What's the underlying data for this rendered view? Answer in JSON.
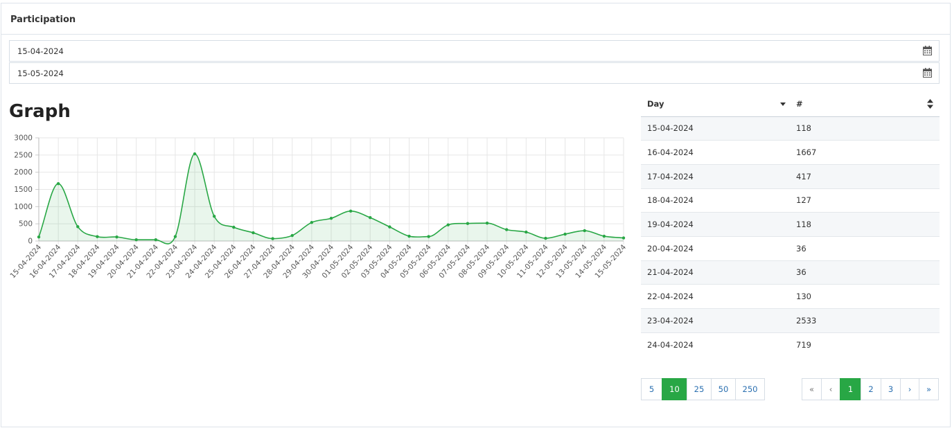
{
  "panel": {
    "title": "Participation"
  },
  "filters": {
    "from_date": "15-04-2024",
    "to_date": "15-05-2024",
    "calendar_icon": "calendar-icon"
  },
  "graph": {
    "title": "Graph"
  },
  "chart_data": {
    "type": "area",
    "x": [
      "15-04-2024",
      "16-04-2024",
      "17-04-2024",
      "18-04-2024",
      "19-04-2024",
      "20-04-2024",
      "21-04-2024",
      "22-04-2024",
      "23-04-2024",
      "24-04-2024",
      "25-04-2024",
      "26-04-2024",
      "27-04-2024",
      "28-04-2024",
      "29-04-2024",
      "30-04-2024",
      "01-05-2024",
      "02-05-2024",
      "03-05-2024",
      "04-05-2024",
      "05-05-2024",
      "06-05-2024",
      "07-05-2024",
      "08-05-2024",
      "09-05-2024",
      "10-05-2024",
      "11-05-2024",
      "12-05-2024",
      "13-05-2024",
      "14-05-2024",
      "15-05-2024"
    ],
    "values": [
      118,
      1667,
      417,
      127,
      118,
      36,
      36,
      130,
      2533,
      719,
      400,
      240,
      70,
      160,
      540,
      660,
      870,
      680,
      410,
      140,
      130,
      470,
      510,
      520,
      330,
      260,
      80,
      200,
      300,
      140,
      90
    ],
    "ylim": [
      0,
      3000
    ],
    "yticks": [
      0,
      500,
      1000,
      1500,
      2000,
      2500,
      3000
    ],
    "grid": true,
    "color": "#28a745",
    "fill": "rgba(40,167,69,0.10)"
  },
  "table": {
    "headers": {
      "day": "Day",
      "count": "#"
    },
    "rows": [
      {
        "day": "15-04-2024",
        "count": "118"
      },
      {
        "day": "16-04-2024",
        "count": "1667"
      },
      {
        "day": "17-04-2024",
        "count": "417"
      },
      {
        "day": "18-04-2024",
        "count": "127"
      },
      {
        "day": "19-04-2024",
        "count": "118"
      },
      {
        "day": "20-04-2024",
        "count": "36"
      },
      {
        "day": "21-04-2024",
        "count": "36"
      },
      {
        "day": "22-04-2024",
        "count": "130"
      },
      {
        "day": "23-04-2024",
        "count": "2533"
      },
      {
        "day": "24-04-2024",
        "count": "719"
      }
    ]
  },
  "pagination": {
    "sizes": [
      "5",
      "10",
      "25",
      "50",
      "250"
    ],
    "active_size": "10",
    "nav": [
      "«",
      "‹",
      "1",
      "2",
      "3",
      "›",
      "»"
    ],
    "active_page": "1"
  }
}
